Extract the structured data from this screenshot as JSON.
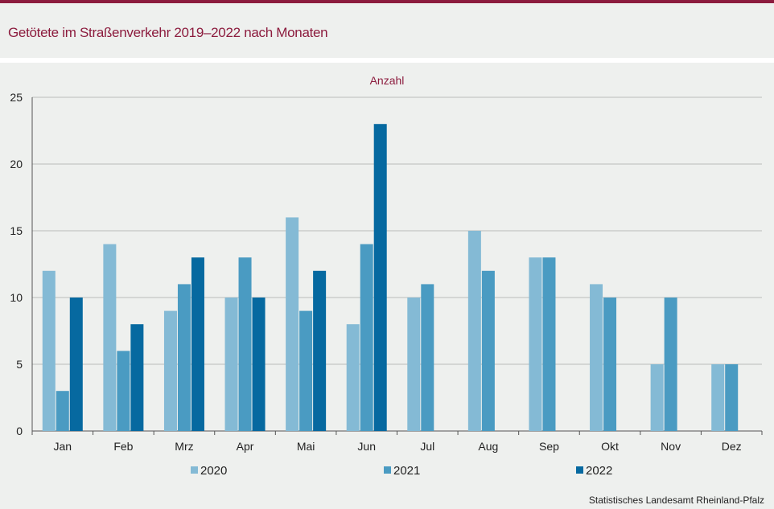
{
  "title": "Getötete im Straßenverkehr 2019–2022 nach Monaten",
  "source": "Statistisches Landesamt  Rheinland-Pfalz",
  "colors": {
    "2020": "#84bad5",
    "2021": "#4a9bc2",
    "2022": "#0669a0",
    "accent": "#8c1c3e"
  },
  "chart_data": {
    "type": "bar",
    "unit_label": "Anzahl",
    "categories": [
      "Jan",
      "Feb",
      "Mrz",
      "Apr",
      "Mai",
      "Jun",
      "Jul",
      "Aug",
      "Sep",
      "Okt",
      "Nov",
      "Dez"
    ],
    "series": [
      {
        "name": "2020",
        "values": [
          12,
          14,
          9,
          10,
          16,
          8,
          10,
          15,
          13,
          11,
          5,
          5
        ]
      },
      {
        "name": "2021",
        "values": [
          3,
          6,
          11,
          13,
          9,
          14,
          11,
          12,
          13,
          10,
          10,
          5
        ]
      },
      {
        "name": "2022",
        "values": [
          10,
          8,
          13,
          10,
          12,
          23,
          null,
          null,
          null,
          null,
          null,
          null
        ]
      }
    ],
    "yticks": [
      0,
      5,
      10,
      15,
      20,
      25
    ],
    "ylim": [
      0,
      25
    ],
    "grid": true,
    "legend_position": "bottom"
  }
}
